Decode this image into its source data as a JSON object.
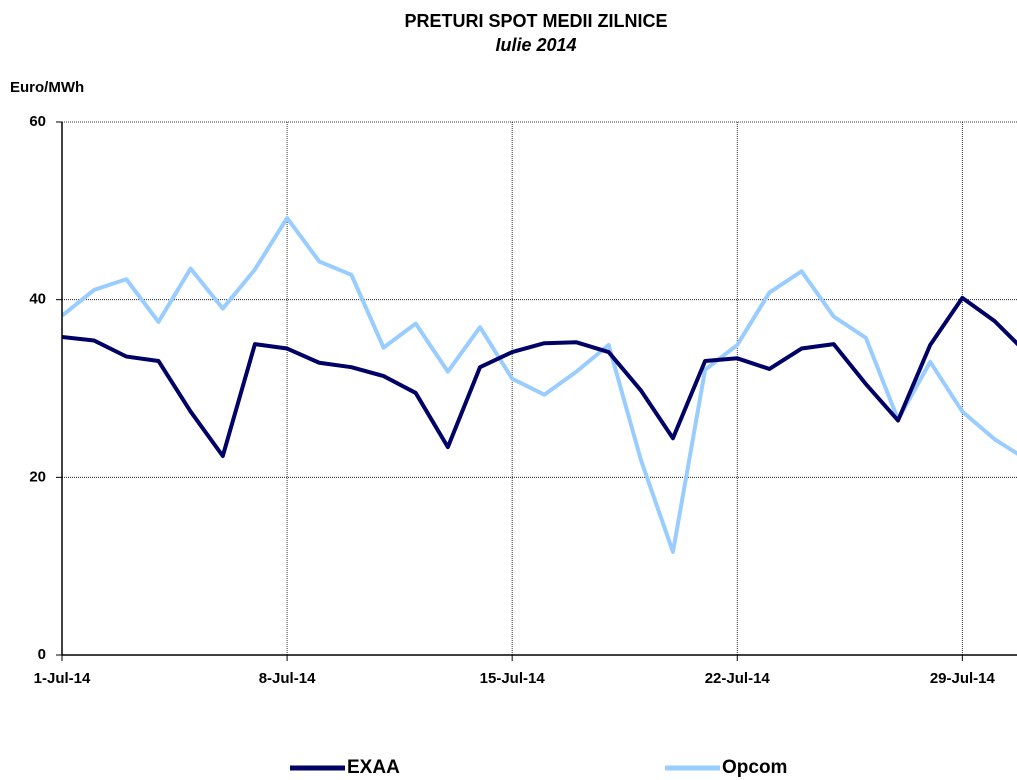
{
  "chart_data": {
    "type": "line",
    "title": "PRETURI SPOT MEDII ZILNICE",
    "subtitle": "Iulie 2014",
    "y_label": "Euro/MWh",
    "x": [
      1,
      2,
      3,
      4,
      5,
      6,
      7,
      8,
      9,
      10,
      11,
      12,
      13,
      14,
      15,
      16,
      17,
      18,
      19,
      20,
      21,
      22,
      23,
      24,
      25,
      26,
      27,
      28,
      29,
      30,
      31
    ],
    "xlim": [
      1,
      30.7
    ],
    "xticks": [
      {
        "value": 1,
        "label": "1-Jul-14"
      },
      {
        "value": 8,
        "label": "8-Jul-14"
      },
      {
        "value": 15,
        "label": "15-Jul-14"
      },
      {
        "value": 22,
        "label": "22-Jul-14"
      },
      {
        "value": 29,
        "label": "29-Jul-14"
      }
    ],
    "ylim": [
      0,
      60
    ],
    "yticks": [
      0,
      20,
      40,
      60
    ],
    "grid": true,
    "series": [
      {
        "name": "EXAA",
        "color": "#000066",
        "values": [
          35.8,
          35.4,
          33.6,
          33.1,
          27.4,
          22.4,
          35.0,
          34.5,
          32.9,
          32.4,
          31.4,
          29.5,
          23.4,
          32.4,
          34.1,
          35.1,
          35.2,
          34.1,
          29.8,
          24.4,
          33.1,
          33.4,
          32.2,
          34.5,
          35.0,
          30.5,
          26.4,
          34.9,
          40.2,
          37.6,
          34.0
        ]
      },
      {
        "name": "Opcom",
        "color": "#99ccff",
        "values": [
          38.2,
          41.1,
          42.3,
          37.5,
          43.5,
          39.0,
          43.4,
          49.2,
          44.3,
          42.8,
          34.6,
          37.3,
          31.9,
          36.9,
          31.1,
          29.3,
          31.9,
          34.9,
          22.0,
          11.6,
          32.1,
          34.9,
          40.8,
          43.2,
          38.1,
          35.7,
          26.5,
          33.0,
          27.4,
          24.3,
          22.0
        ]
      }
    ]
  }
}
